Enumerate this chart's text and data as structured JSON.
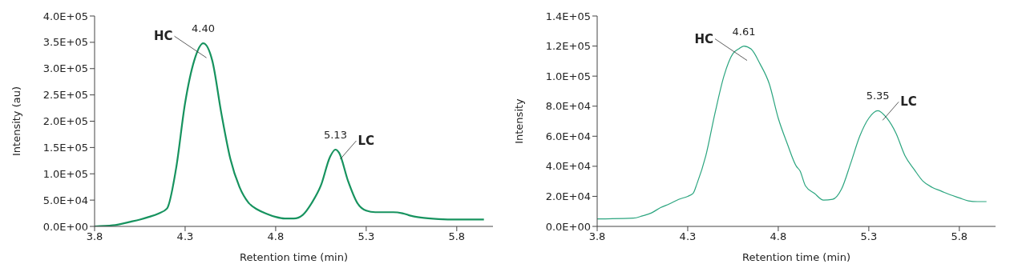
{
  "chart_data": [
    {
      "type": "line",
      "xlabel": "Retention time (min)",
      "ylabel": "Intensity (au)",
      "color": "#17935f",
      "x": [
        3.8,
        3.9,
        4.0,
        4.05,
        4.1,
        4.15,
        4.2,
        4.25,
        4.3,
        4.35,
        4.4,
        4.45,
        4.5,
        4.55,
        4.6,
        4.65,
        4.7,
        4.75,
        4.8,
        4.85,
        4.9,
        4.95,
        5.0,
        5.05,
        5.1,
        5.13,
        5.15,
        5.2,
        5.25,
        5.3,
        5.35,
        5.4,
        5.45,
        5.5,
        5.55,
        5.6,
        5.7,
        5.8,
        5.95
      ],
      "values": [
        0,
        2000,
        9000,
        13000,
        18000,
        24000,
        34000,
        110000,
        235000,
        315000,
        348000,
        315000,
        215000,
        128000,
        75000,
        45000,
        32000,
        24000,
        18000,
        15000,
        15000,
        22000,
        45000,
        78000,
        132000,
        146000,
        140000,
        86000,
        45000,
        30000,
        27000,
        27000,
        27000,
        25000,
        20000,
        17000,
        14000,
        13000,
        13000
      ],
      "xlim": [
        3.8,
        6.0
      ],
      "xticks": [
        3.8,
        4.3,
        4.8,
        5.3,
        5.8
      ],
      "ylim": [
        0,
        400000
      ],
      "yticks": [
        {
          "value": 0,
          "label": "0.0E+00"
        },
        {
          "value": 50000,
          "label": "5.0E+04"
        },
        {
          "value": 100000,
          "label": "1.0E+05"
        },
        {
          "value": 150000,
          "label": "1.5E+05"
        },
        {
          "value": 200000,
          "label": "2.0E+05"
        },
        {
          "value": 250000,
          "label": "2.5E+05"
        },
        {
          "value": 300000,
          "label": "3.0E+05"
        },
        {
          "value": 350000,
          "label": "3.5E+05"
        },
        {
          "value": 400000,
          "label": "4.0E+05"
        }
      ],
      "annotations": [
        {
          "text": "4.40",
          "x": 4.4,
          "y": 348000
        },
        "HC",
        {
          "text": "5.13",
          "x": 5.13,
          "y": 146000
        },
        "LC"
      ]
    },
    {
      "type": "line",
      "xlabel": "Retention time (min)",
      "ylabel": "Intensity",
      "color": "#2ba57f",
      "x": [
        3.8,
        4.0,
        4.05,
        4.1,
        4.15,
        4.2,
        4.25,
        4.3,
        4.33,
        4.35,
        4.4,
        4.45,
        4.5,
        4.55,
        4.58,
        4.61,
        4.65,
        4.7,
        4.75,
        4.8,
        4.85,
        4.9,
        4.92,
        4.95,
        5.0,
        5.05,
        5.1,
        5.15,
        5.2,
        5.25,
        5.3,
        5.35,
        5.4,
        5.45,
        5.5,
        5.55,
        5.6,
        5.65,
        5.7,
        5.75,
        5.8,
        5.85,
        5.9,
        5.95
      ],
      "values": [
        5000,
        5500,
        7000,
        9000,
        12500,
        15000,
        18000,
        20000,
        22000,
        28000,
        47000,
        75000,
        100000,
        115000,
        118000,
        120000,
        118000,
        108000,
        95000,
        72000,
        55000,
        40000,
        37000,
        27000,
        22000,
        17500,
        18000,
        25000,
        42000,
        60000,
        72000,
        77000,
        72000,
        62000,
        47000,
        38000,
        30000,
        26000,
        23500,
        21000,
        19000,
        17000,
        16500,
        16500
      ],
      "xlim": [
        3.8,
        6.0
      ],
      "xticks": [
        3.8,
        4.3,
        4.8,
        5.3,
        5.8
      ],
      "ylim": [
        0,
        140000
      ],
      "yticks": [
        {
          "value": 0,
          "label": "0.0E+00"
        },
        {
          "value": 20000,
          "label": "2.0E+04"
        },
        {
          "value": 40000,
          "label": "4.0E+04"
        },
        {
          "value": 60000,
          "label": "6.0E+04"
        },
        {
          "value": 80000,
          "label": "8.0E+04"
        },
        {
          "value": 100000,
          "label": "1.0E+05"
        },
        {
          "value": 120000,
          "label": "1.2E+05"
        },
        {
          "value": 140000,
          "label": "1.4E+05"
        }
      ],
      "annotations": [
        {
          "text": "4.61",
          "x": 4.61,
          "y": 120000
        },
        "HC",
        {
          "text": "5.35",
          "x": 5.35,
          "y": 77000
        },
        "LC"
      ]
    }
  ]
}
